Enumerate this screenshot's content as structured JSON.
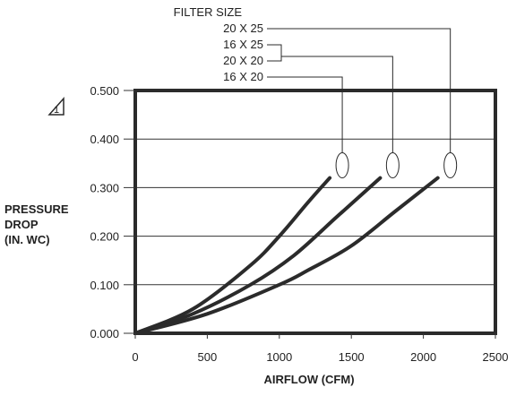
{
  "chart_data": {
    "type": "line",
    "xlabel": "AIRFLOW (CFM)",
    "ylabel_lines": [
      "PRESSURE",
      "DROP",
      "(IN. WC)"
    ],
    "xlim": [
      0,
      2500
    ],
    "ylim": [
      0,
      0.5
    ],
    "x_ticks": [
      0,
      500,
      1000,
      1500,
      2000,
      2500
    ],
    "x_tick_labels": [
      "0",
      "500",
      "1000",
      "1500",
      "2000",
      "2500"
    ],
    "y_ticks": [
      0,
      0.1,
      0.2,
      0.3,
      0.4,
      0.5
    ],
    "y_tick_labels": [
      "0.000",
      "0.100",
      "0.200",
      "0.300",
      "0.400",
      "0.500"
    ],
    "grid": "horizontal",
    "legend_title": "FILTER SIZE",
    "note_marker": "1",
    "series": [
      {
        "name": "16 X 20",
        "labels": [
          "16 X 20"
        ],
        "points": [
          [
            0,
            0
          ],
          [
            400,
            0.05
          ],
          [
            800,
            0.14
          ],
          [
            1000,
            0.2
          ],
          [
            1200,
            0.27
          ],
          [
            1350,
            0.32
          ]
        ]
      },
      {
        "name": "16 X 25 / 20 X 20",
        "labels": [
          "16 X 25",
          "20 X 20"
        ],
        "points": [
          [
            0,
            0
          ],
          [
            400,
            0.04
          ],
          [
            800,
            0.1
          ],
          [
            1100,
            0.16
          ],
          [
            1400,
            0.24
          ],
          [
            1700,
            0.32
          ]
        ]
      },
      {
        "name": "20 X 25",
        "labels": [
          "20 X 25"
        ],
        "points": [
          [
            0,
            0
          ],
          [
            500,
            0.04
          ],
          [
            1000,
            0.1
          ],
          [
            1200,
            0.13
          ],
          [
            1500,
            0.18
          ],
          [
            1800,
            0.25
          ],
          [
            2100,
            0.32
          ]
        ]
      }
    ],
    "colors": {
      "line": "#2b2b2b",
      "grid": "#333333",
      "frame": "#2b2b2b"
    }
  }
}
